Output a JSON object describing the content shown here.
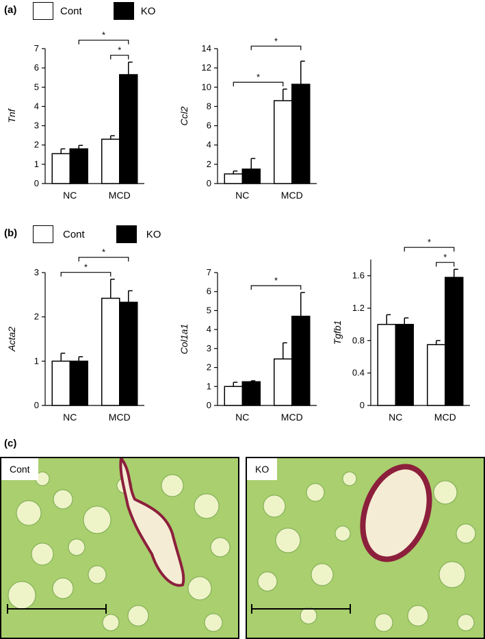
{
  "panel_labels": {
    "a": "(a)",
    "b": "(b)",
    "c": "(c)"
  },
  "legend": {
    "control": "Cont",
    "knockout": "KO"
  },
  "colors": {
    "control_fill": "#ffffff",
    "knockout_fill": "#000000",
    "stain_background": "#a9cf6e",
    "stain_collagen": "#8c1f3c"
  },
  "chart_data": [
    {
      "type": "bar",
      "id": "tnf",
      "ylabel": "Tnf",
      "categories": [
        "NC",
        "MCD"
      ],
      "ylim": [
        0,
        7
      ],
      "yticks": [
        0,
        1,
        2,
        3,
        4,
        5,
        6,
        7
      ],
      "series": [
        {
          "name": "Cont",
          "values": [
            1.55,
            2.3
          ],
          "errors": [
            0.25,
            0.18
          ]
        },
        {
          "name": "KO",
          "values": [
            1.8,
            5.65
          ],
          "errors": [
            0.18,
            0.65
          ]
        }
      ],
      "significance": [
        {
          "from": [
            0,
            1
          ],
          "to": [
            1,
            1
          ],
          "label": "*"
        },
        {
          "from": [
            1,
            0
          ],
          "to": [
            1,
            1
          ],
          "label": "*"
        }
      ]
    },
    {
      "type": "bar",
      "id": "ccl2",
      "ylabel": "Ccl2",
      "categories": [
        "NC",
        "MCD"
      ],
      "ylim": [
        0,
        14
      ],
      "yticks": [
        0,
        2,
        4,
        6,
        8,
        10,
        12,
        14
      ],
      "series": [
        {
          "name": "Cont",
          "values": [
            1.0,
            8.6
          ],
          "errors": [
            0.3,
            1.2
          ]
        },
        {
          "name": "KO",
          "values": [
            1.5,
            10.3
          ],
          "errors": [
            1.1,
            2.4
          ]
        }
      ],
      "significance": [
        {
          "from": [
            0,
            0
          ],
          "to": [
            1,
            0
          ],
          "label": "*"
        },
        {
          "from": [
            0,
            1
          ],
          "to": [
            1,
            1
          ],
          "label": "*"
        }
      ]
    },
    {
      "type": "bar",
      "id": "acta2",
      "ylabel": "Acta2",
      "categories": [
        "NC",
        "MCD"
      ],
      "ylim": [
        0,
        3
      ],
      "yticks": [
        0,
        1,
        2,
        3
      ],
      "series": [
        {
          "name": "Cont",
          "values": [
            1.0,
            2.42
          ],
          "errors": [
            0.18,
            0.43
          ]
        },
        {
          "name": "KO",
          "values": [
            1.0,
            2.33
          ],
          "errors": [
            0.1,
            0.26
          ]
        }
      ],
      "significance": [
        {
          "from": [
            0,
            0
          ],
          "to": [
            1,
            0
          ],
          "label": "*"
        },
        {
          "from": [
            0,
            1
          ],
          "to": [
            1,
            1
          ],
          "label": "*"
        }
      ]
    },
    {
      "type": "bar",
      "id": "col1a1",
      "ylabel": "Col1a1",
      "categories": [
        "NC",
        "MCD"
      ],
      "ylim": [
        0,
        7
      ],
      "yticks": [
        0,
        1,
        2,
        3,
        4,
        5,
        6,
        7
      ],
      "series": [
        {
          "name": "Cont",
          "values": [
            1.0,
            2.45
          ],
          "errors": [
            0.22,
            0.85
          ]
        },
        {
          "name": "KO",
          "values": [
            1.25,
            4.7
          ],
          "errors": [
            0.05,
            1.25
          ]
        }
      ],
      "significance": [
        {
          "from": [
            0,
            1
          ],
          "to": [
            1,
            1
          ],
          "label": "*"
        }
      ]
    },
    {
      "type": "bar",
      "id": "tgfb1",
      "ylabel": "Tgfb1",
      "categories": [
        "NC",
        "MCD"
      ],
      "ylim": [
        0,
        1.8
      ],
      "yticks": [
        0,
        0.4,
        0.8,
        1.2,
        1.6
      ],
      "ytick_labels": [
        "0",
        "0.4",
        "0.8",
        "1.2",
        "1.6"
      ],
      "series": [
        {
          "name": "Cont",
          "values": [
            1.0,
            0.75
          ],
          "errors": [
            0.12,
            0.05
          ]
        },
        {
          "name": "KO",
          "values": [
            1.0,
            1.58
          ],
          "errors": [
            0.08,
            0.1
          ]
        }
      ],
      "significance": [
        {
          "from": [
            0,
            1
          ],
          "to": [
            1,
            1
          ],
          "label": "*"
        },
        {
          "from": [
            1,
            0
          ],
          "to": [
            1,
            1
          ],
          "label": "*"
        }
      ]
    }
  ],
  "micrographs": [
    {
      "label": "Cont"
    },
    {
      "label": "KO"
    }
  ]
}
